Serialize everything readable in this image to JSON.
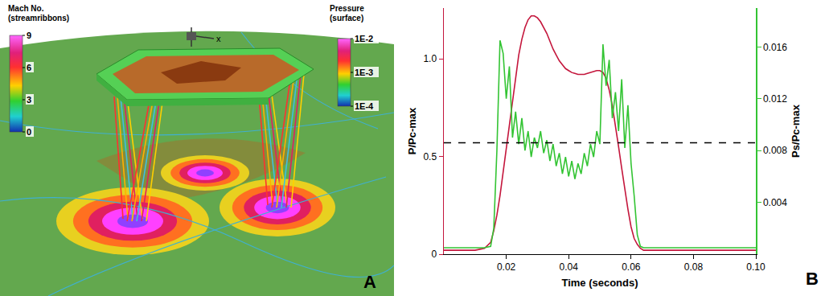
{
  "panel_a": {
    "letter": "A",
    "type": "rendering",
    "triad_label": "x",
    "colorbars": [
      {
        "title": [
          "Mach No.",
          "(streamribbons)"
        ],
        "range": [
          0,
          9
        ],
        "ticks": [
          0,
          3,
          6,
          9
        ],
        "log": false
      },
      {
        "title": [
          "Pressure",
          "(surface)"
        ],
        "range": [
          0.0001,
          0.01
        ],
        "log": true,
        "ticks": [
          {
            "value": 0.01,
            "label": "1E-2"
          },
          {
            "value": 0.001,
            "label": "1E-3"
          },
          {
            "value": 0.0001,
            "label": "1E-4"
          }
        ]
      }
    ]
  },
  "chart_data": {
    "type": "line",
    "letter": "B",
    "x_label": "Time (seconds)",
    "y_label": "P/Pc-max",
    "y2_label": "Ps/Pc-max",
    "x": [
      0,
      0.005,
      0.01,
      0.013,
      0.015,
      0.016,
      0.017,
      0.018,
      0.019,
      0.02,
      0.021,
      0.022,
      0.023,
      0.024,
      0.025,
      0.026,
      0.027,
      0.028,
      0.029,
      0.03,
      0.031,
      0.032,
      0.033,
      0.034,
      0.035,
      0.036,
      0.037,
      0.038,
      0.039,
      0.04,
      0.041,
      0.042,
      0.043,
      0.044,
      0.045,
      0.046,
      0.047,
      0.048,
      0.049,
      0.05,
      0.051,
      0.052,
      0.053,
      0.054,
      0.055,
      0.056,
      0.057,
      0.058,
      0.059,
      0.06,
      0.061,
      0.062,
      0.063,
      0.064,
      0.065,
      0.066,
      0.07,
      0.08,
      0.09,
      0.1
    ],
    "series": [
      {
        "color": "#c4163c",
        "axis": "y",
        "values": [
          0.02,
          0.02,
          0.02,
          0.03,
          0.06,
          0.12,
          0.2,
          0.3,
          0.42,
          0.55,
          0.68,
          0.8,
          0.92,
          1.02,
          1.1,
          1.16,
          1.2,
          1.22,
          1.22,
          1.21,
          1.19,
          1.16,
          1.13,
          1.09,
          1.05,
          1.02,
          0.99,
          0.97,
          0.95,
          0.94,
          0.93,
          0.925,
          0.92,
          0.92,
          0.92,
          0.925,
          0.93,
          0.935,
          0.94,
          0.94,
          0.93,
          0.9,
          0.84,
          0.76,
          0.66,
          0.55,
          0.44,
          0.33,
          0.23,
          0.14,
          0.08,
          0.05,
          0.03,
          0.02,
          0.02,
          0.02,
          0.02,
          0.02,
          0.02,
          0.02
        ]
      },
      {
        "color": "#33c433",
        "axis": "y2",
        "values": [
          0.0005,
          0.0005,
          0.0005,
          0.0005,
          0.0006,
          0.002,
          0.008,
          0.0165,
          0.0155,
          0.012,
          0.0145,
          0.009,
          0.011,
          0.0085,
          0.0105,
          0.008,
          0.0095,
          0.0075,
          0.009,
          0.0082,
          0.0095,
          0.0078,
          0.0088,
          0.0072,
          0.0085,
          0.0068,
          0.0078,
          0.0062,
          0.0075,
          0.006,
          0.0072,
          0.0058,
          0.007,
          0.0062,
          0.0078,
          0.0068,
          0.0085,
          0.0075,
          0.0095,
          0.0085,
          0.0162,
          0.013,
          0.015,
          0.0105,
          0.0125,
          0.0095,
          0.0135,
          0.0082,
          0.0115,
          0.007,
          0.0045,
          0.0015,
          0.0006,
          0.0005,
          0.0005,
          0.0005,
          0.0005,
          0.0005,
          0.0005,
          0.0005
        ]
      }
    ],
    "reference_line": {
      "y": 0.57,
      "color": "#000000",
      "line_style": "dash"
    },
    "xlim": [
      0,
      0.1
    ],
    "xticks": [
      0.02,
      0.04,
      0.06,
      0.08,
      {
        "value": 0.1,
        "label": "0.10"
      }
    ],
    "ylim": [
      0,
      1.26
    ],
    "yticks": [
      0,
      0.5,
      {
        "value": 1,
        "label": "1.0"
      }
    ],
    "y2lim": [
      0,
      0.019
    ],
    "y2ticks": [
      0.004,
      0.008,
      0.012,
      0.016
    ],
    "grid": false
  }
}
